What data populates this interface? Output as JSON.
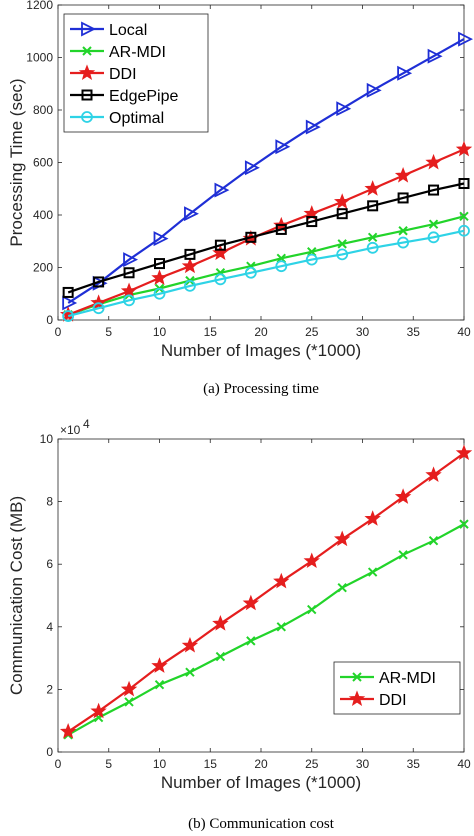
{
  "chart_data": [
    {
      "type": "line",
      "caption": "(a)  Processing time",
      "xlabel": "Number of Images (*1000)",
      "ylabel": "Processing Time (sec)",
      "xlim": [
        0,
        40
      ],
      "ylim": [
        0,
        1200
      ],
      "xticks": [
        0,
        5,
        10,
        15,
        20,
        25,
        30,
        35,
        40
      ],
      "yticks": [
        0,
        200,
        400,
        600,
        800,
        1000,
        1200
      ],
      "grid": false,
      "legend_position": "top-left",
      "x": [
        1,
        4,
        7,
        10,
        13,
        16,
        19,
        22,
        25,
        28,
        31,
        34,
        37,
        40
      ],
      "series": [
        {
          "name": "Local",
          "color": "#1f2fd6",
          "marker": "triangle-right",
          "values": [
            65,
            140,
            230,
            310,
            405,
            495,
            580,
            660,
            735,
            805,
            875,
            940,
            1005,
            1070
          ]
        },
        {
          "name": "AR-MDI",
          "color": "#22d42a",
          "marker": "x",
          "values": [
            20,
            60,
            95,
            120,
            150,
            180,
            205,
            235,
            260,
            290,
            315,
            340,
            365,
            395
          ]
        },
        {
          "name": "DDI",
          "color": "#e51e1e",
          "marker": "star",
          "values": [
            20,
            65,
            110,
            160,
            205,
            255,
            310,
            360,
            405,
            450,
            500,
            550,
            600,
            650
          ]
        },
        {
          "name": "EdgePipe",
          "color": "#000000",
          "marker": "square",
          "values": [
            105,
            145,
            180,
            215,
            250,
            285,
            315,
            345,
            375,
            405,
            435,
            465,
            495,
            520
          ]
        },
        {
          "name": "Optimal",
          "color": "#2ed3e6",
          "marker": "circle",
          "values": [
            15,
            45,
            75,
            100,
            130,
            155,
            180,
            205,
            230,
            250,
            275,
            295,
            315,
            340
          ]
        }
      ]
    },
    {
      "type": "line",
      "caption": "(b)  Communication cost",
      "xlabel": "Number of Images (*1000)",
      "ylabel": "Communication Cost (MB)",
      "exponent_label": "×10",
      "exponent_power": "4",
      "xlim": [
        0,
        40
      ],
      "ylim": [
        0,
        100000
      ],
      "xticks": [
        0,
        5,
        10,
        15,
        20,
        25,
        30,
        35,
        40
      ],
      "yticks": [
        0,
        20000,
        40000,
        60000,
        80000,
        100000
      ],
      "ytick_labels": [
        "0",
        "2",
        "4",
        "6",
        "8",
        "10"
      ],
      "grid": false,
      "legend_position": "bottom-right",
      "x": [
        1,
        4,
        7,
        10,
        13,
        16,
        19,
        22,
        25,
        28,
        31,
        34,
        37,
        40
      ],
      "series": [
        {
          "name": "AR-MDI",
          "color": "#22d42a",
          "marker": "x",
          "values": [
            5500,
            11000,
            16000,
            21500,
            25500,
            30500,
            35500,
            40000,
            45500,
            52500,
            57500,
            63000,
            67500,
            72800
          ]
        },
        {
          "name": "DDI",
          "color": "#e51e1e",
          "marker": "star",
          "values": [
            6500,
            13000,
            20000,
            27500,
            34000,
            41000,
            47500,
            54500,
            61000,
            68000,
            74500,
            81500,
            88500,
            95500
          ]
        }
      ]
    }
  ]
}
